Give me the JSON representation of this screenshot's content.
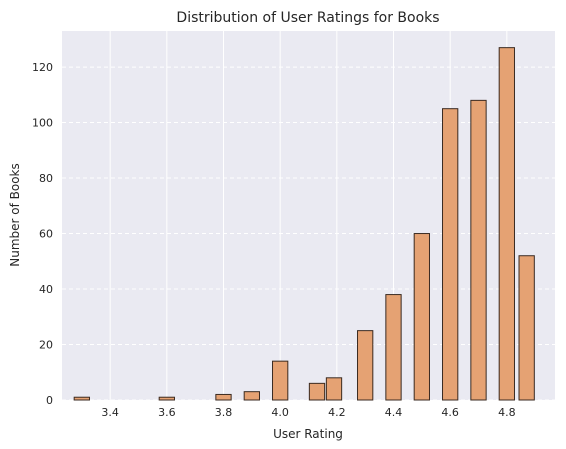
{
  "chart_data": {
    "type": "bar",
    "title": "Distribution of User Ratings for Books",
    "xlabel": "User Rating",
    "ylabel": "Number of Books",
    "xlim": [
      3.23,
      4.97
    ],
    "ylim": [
      0,
      133
    ],
    "x_ticks": [
      "3.4",
      "3.6",
      "3.8",
      "4.0",
      "4.2",
      "4.4",
      "4.6",
      "4.8"
    ],
    "y_ticks": [
      "0",
      "20",
      "40",
      "60",
      "80",
      "100",
      "120"
    ],
    "grid": true,
    "bar_width": 0.054,
    "bars": [
      {
        "x": 3.3,
        "value": 1
      },
      {
        "x": 3.6,
        "value": 1
      },
      {
        "x": 3.8,
        "value": 2
      },
      {
        "x": 3.9,
        "value": 3
      },
      {
        "x": 4.0,
        "value": 14
      },
      {
        "x": 4.13,
        "value": 6
      },
      {
        "x": 4.19,
        "value": 8
      },
      {
        "x": 4.3,
        "value": 25
      },
      {
        "x": 4.4,
        "value": 38
      },
      {
        "x": 4.5,
        "value": 60
      },
      {
        "x": 4.6,
        "value": 105
      },
      {
        "x": 4.7,
        "value": 108
      },
      {
        "x": 4.8,
        "value": 127
      },
      {
        "x": 4.87,
        "value": 52
      }
    ],
    "colors": {
      "bar_fill": "#e5a273",
      "bar_edge": "#3a2a20",
      "plot_bg": "#eaeaf2",
      "grid": "#ffffff"
    }
  }
}
